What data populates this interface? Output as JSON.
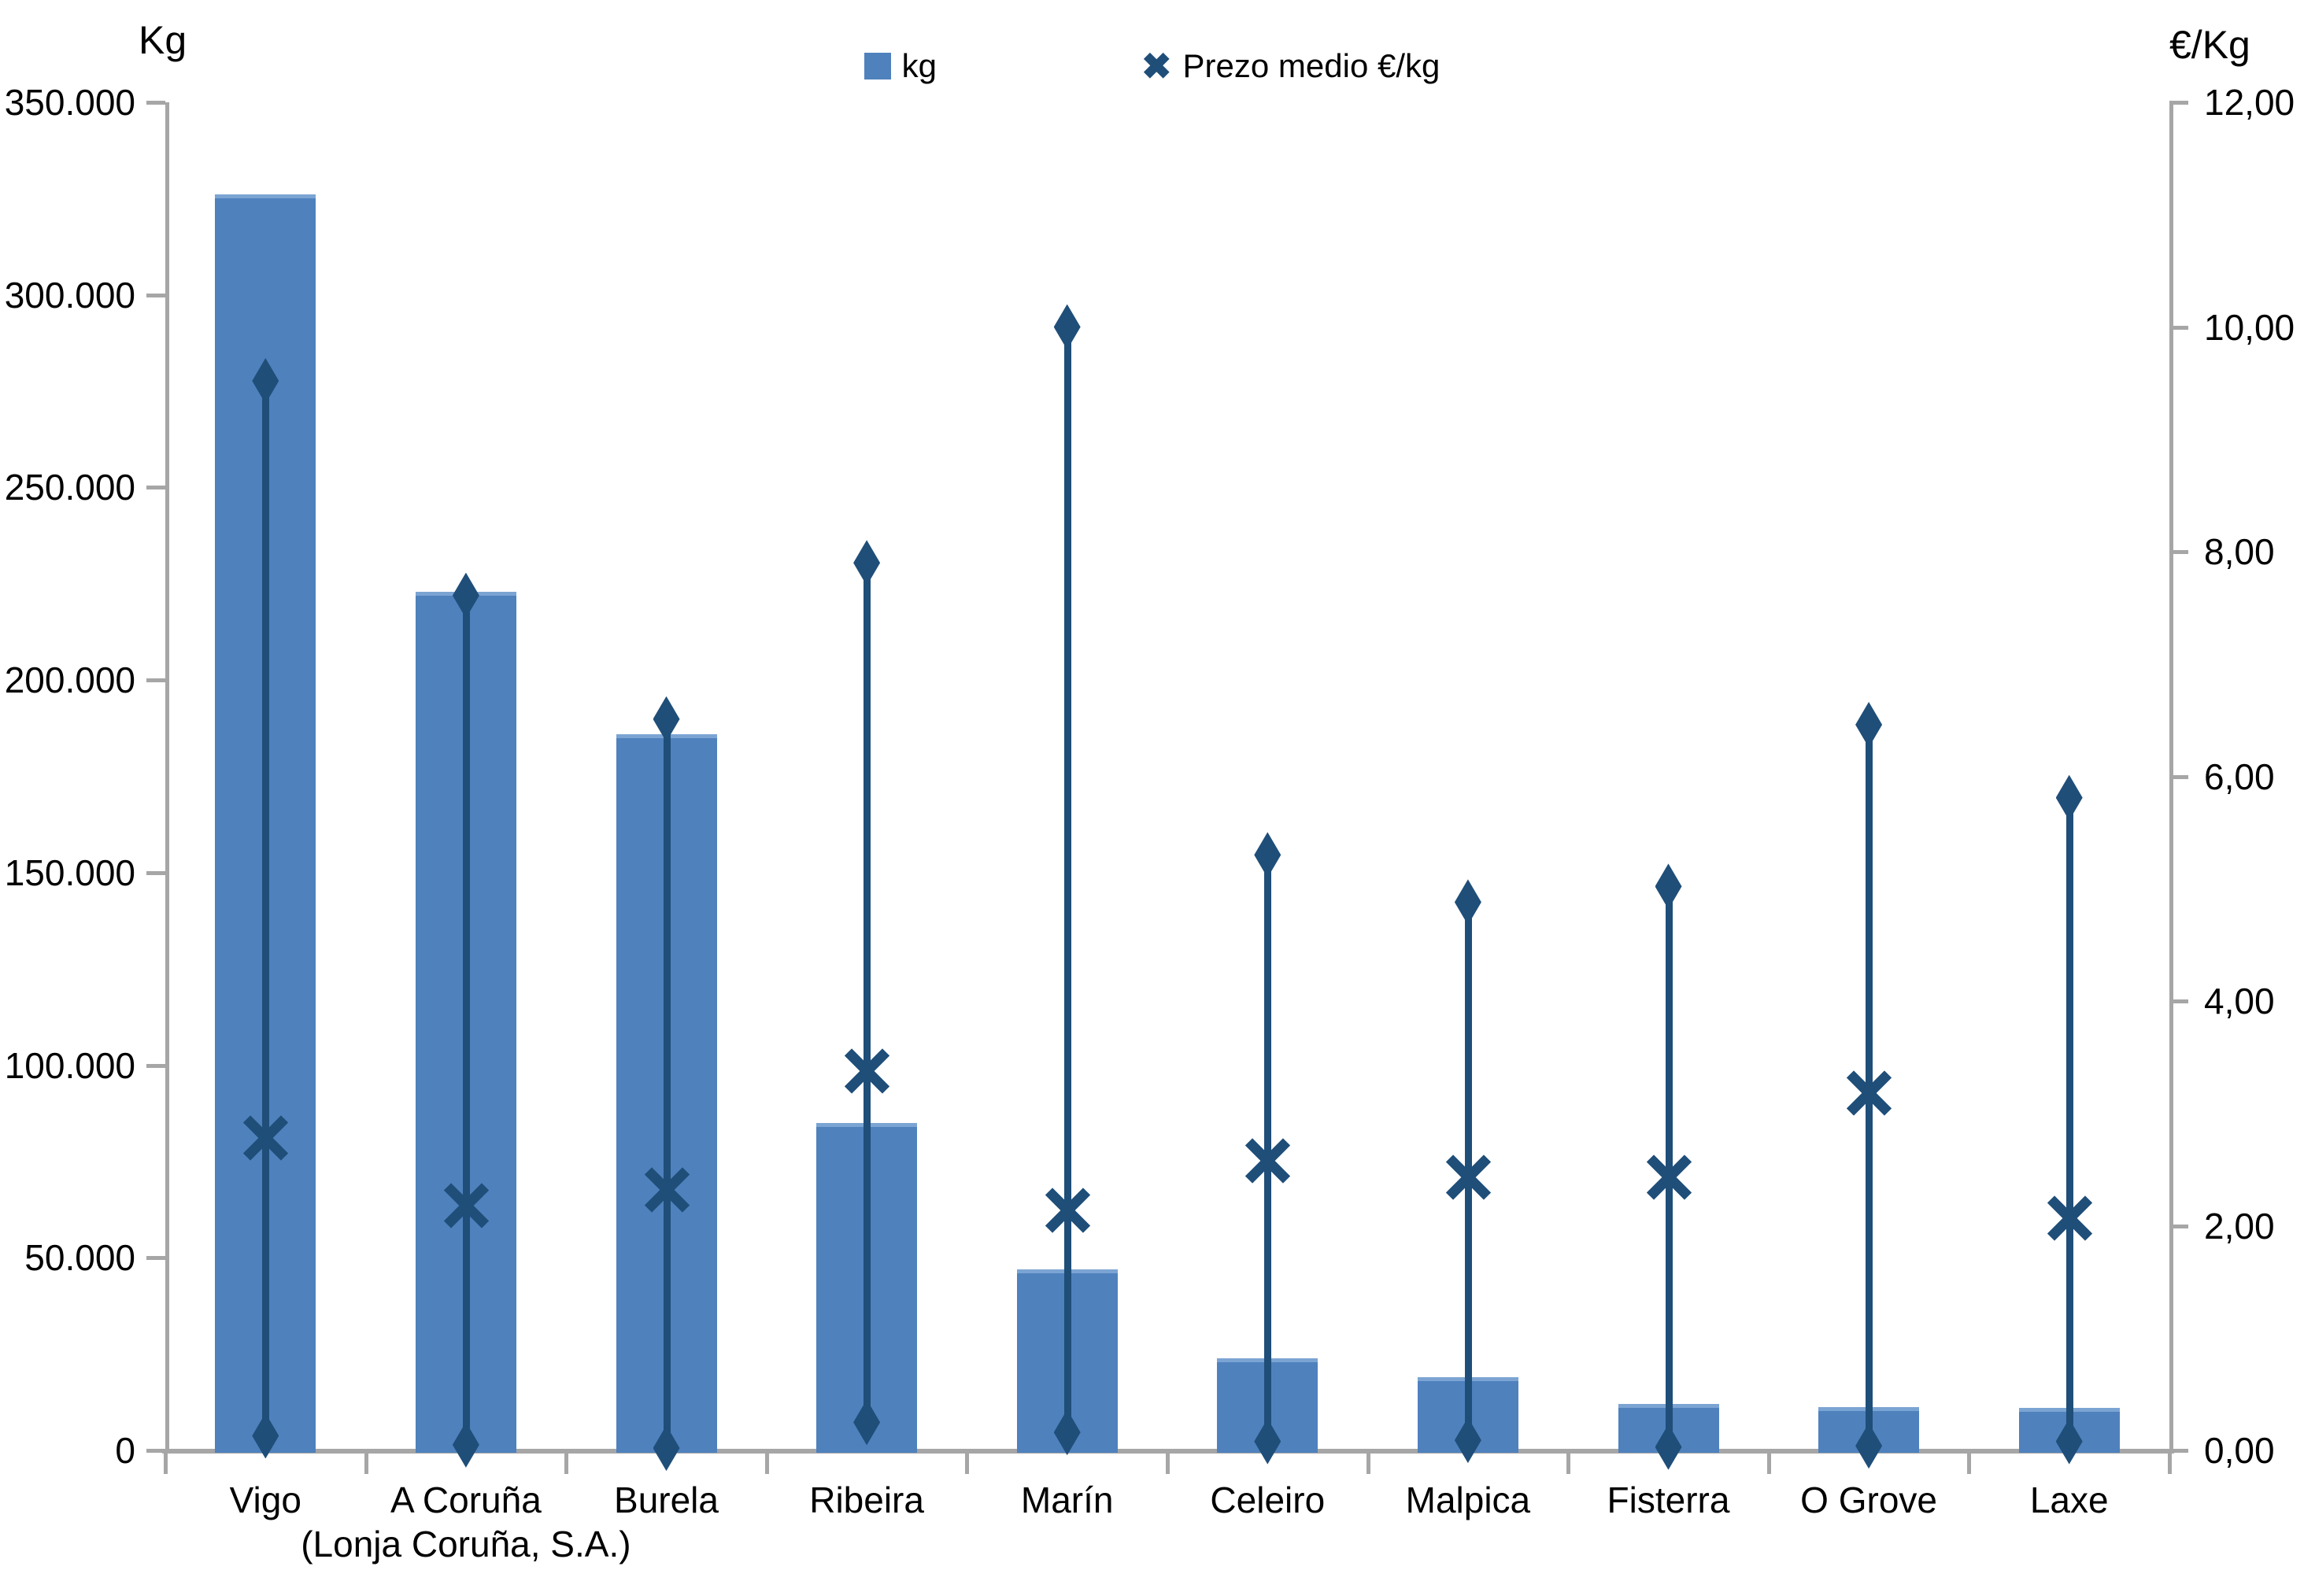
{
  "chart_data": {
    "type": "bar",
    "title": "",
    "legend": [
      {
        "label": "kg",
        "marker": "square",
        "color": "#4F81BD"
      },
      {
        "label": "Prezo medio €/kg",
        "marker": "x",
        "color": "#1F4E79"
      }
    ],
    "left_axis": {
      "title": "Kg",
      "min": 0,
      "max": 350000,
      "step": 50000,
      "tick_labels": [
        "350.000",
        "300.000",
        "250.000",
        "200.000",
        "150.000",
        "100.000",
        "50.000",
        "0"
      ]
    },
    "right_axis": {
      "title": "€/Kg",
      "min": 0,
      "max": 12,
      "step": 2,
      "tick_labels": [
        "12,00",
        "10,00",
        "8,00",
        "6,00",
        "4,00",
        "2,00",
        "0,00"
      ]
    },
    "categories": [
      {
        "label": "Vigo",
        "sublabel": ""
      },
      {
        "label": "A Coruña",
        "sublabel": "(Lonja Coruña, S.A.)"
      },
      {
        "label": "Burela",
        "sublabel": ""
      },
      {
        "label": "Ribeira",
        "sublabel": ""
      },
      {
        "label": "Marín",
        "sublabel": ""
      },
      {
        "label": "Celeiro",
        "sublabel": ""
      },
      {
        "label": "Malpica",
        "sublabel": ""
      },
      {
        "label": "Fisterra",
        "sublabel": ""
      },
      {
        "label": "O Grove",
        "sublabel": ""
      },
      {
        "label": "Laxe",
        "sublabel": ""
      }
    ],
    "series": [
      {
        "name": "kg",
        "axis": "left",
        "type": "bar",
        "color": "#4F81BD",
        "values": [
          326000,
          223000,
          186000,
          85000,
          47000,
          24000,
          19000,
          12000,
          11300,
          11000
        ]
      },
      {
        "name": "Prezo medio €/kg",
        "axis": "right",
        "type": "highlow-mean",
        "color": "#1F4E79",
        "mean": [
          2.78,
          2.18,
          2.32,
          3.38,
          2.14,
          2.58,
          2.43,
          2.43,
          3.18,
          2.07
        ],
        "max": [
          9.52,
          7.61,
          6.51,
          7.9,
          10.0,
          5.3,
          4.88,
          5.02,
          6.46,
          5.81
        ],
        "min": [
          0.13,
          0.05,
          0.02,
          0.25,
          0.16,
          0.08,
          0.09,
          0.03,
          0.04,
          0.08
        ]
      }
    ],
    "colors": {
      "bar": "#4F81BD",
      "marker": "#1F4E79",
      "axis": "#A6A6A6",
      "text": "#000000"
    }
  }
}
